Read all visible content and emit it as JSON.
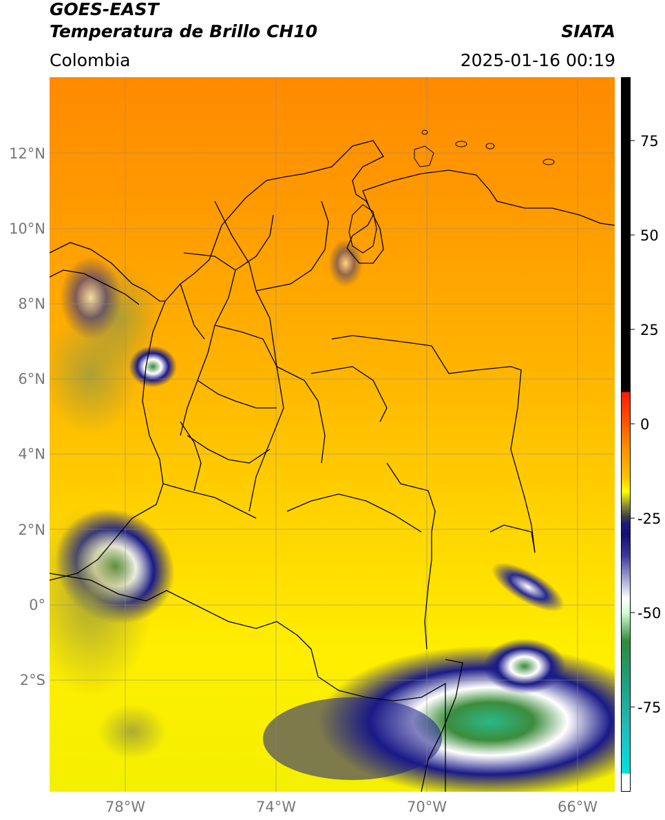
{
  "header": {
    "satellite": "GOES-EAST",
    "product": "Temperatura de Brillo CH10",
    "region": "Colombia",
    "brand": "SIATA",
    "timestamp": "2025-01-16 00:19"
  },
  "map": {
    "lat_ticks": [
      "12°N",
      "10°N",
      "8°N",
      "6°N",
      "4°N",
      "2°N",
      "0°",
      "2°S"
    ],
    "lon_ticks": [
      "78°W",
      "74°W",
      "70°W",
      "66°W"
    ],
    "lon_range": [
      -80.0,
      -65.0
    ],
    "lat_range": [
      -5.0,
      14.0
    ],
    "gridlines": true
  },
  "colorbar": {
    "labels": [
      "75",
      "50",
      "25",
      "0",
      "-25",
      "-50",
      "-75"
    ],
    "range": [
      -95,
      90
    ],
    "colors": {
      "black": "#000000",
      "red": "#ff1a00",
      "orange": "#ff8c00",
      "yellow": "#ffff00",
      "olive": "#8a8a3a",
      "navy": "#101080",
      "white": "#ffffff",
      "green": "#2e8b3a",
      "teal": "#20c0a0",
      "cyan": "#00e0e0"
    }
  }
}
